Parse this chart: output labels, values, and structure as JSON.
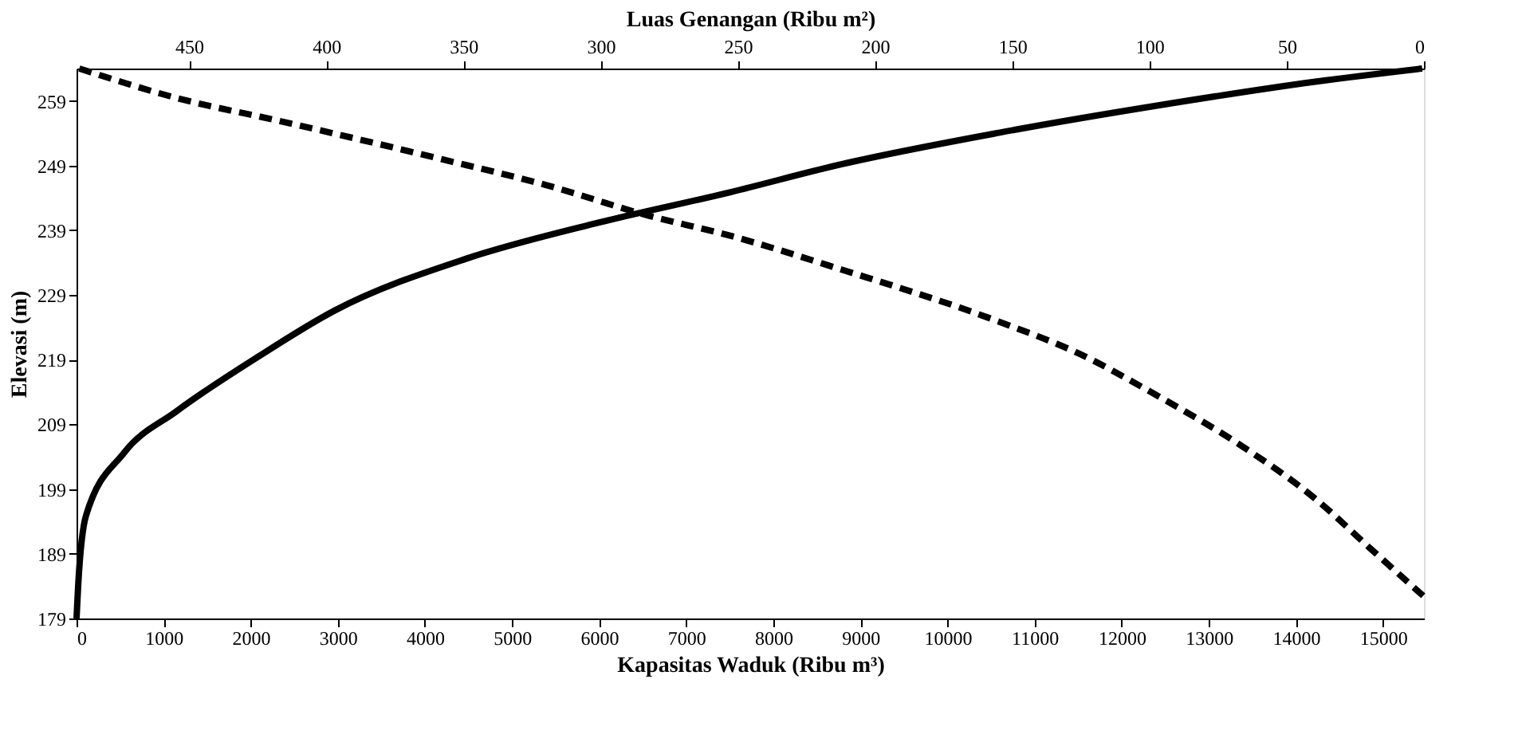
{
  "chart_data": {
    "type": "line",
    "xlabel": "Kapasitas Waduk (Ribu  m³)",
    "x2label": "Luas Genangan (Ribu m²)",
    "ylabel": "Elevasi (m)",
    "xlim": [
      0,
      15470
    ],
    "xticks": [
      0,
      1000,
      2000,
      3000,
      4000,
      5000,
      6000,
      7000,
      8000,
      9000,
      10000,
      11000,
      12000,
      13000,
      14000,
      15000
    ],
    "x2lim": [
      491,
      0
    ],
    "x2ticks": [
      450,
      400,
      350,
      300,
      250,
      200,
      150,
      100,
      50,
      0
    ],
    "ylim": [
      179,
      264
    ],
    "yticks": [
      179,
      189,
      199,
      209,
      219,
      229,
      239,
      249,
      259
    ],
    "grid": false,
    "marker": "none",
    "series": [
      {
        "color": "#000000",
        "line_style": "solid",
        "x": [
          0,
          18,
          109,
          545,
          1145,
          2055,
          2964,
          4473,
          6000,
          7510,
          8780,
          10600,
          12420,
          14240,
          15450
        ],
        "values": [
          179,
          183.9,
          194.9,
          204.6,
          211,
          219.2,
          226.6,
          234.6,
          240.2,
          244.9,
          249.2,
          254.1,
          258.3,
          262,
          264
        ]
      },
      {
        "color": "#000000",
        "line_style": "dashed",
        "axis": "x2",
        "x": [
          490,
          455,
          416,
          358,
          320,
          282,
          254,
          212,
          155,
          126,
          97,
          68,
          39,
          20,
          0
        ],
        "values": [
          264,
          259.5,
          255.8,
          250,
          246,
          241.2,
          238.3,
          232.9,
          224.9,
          220,
          213.4,
          206.1,
          197.3,
          190,
          182.4
        ]
      }
    ]
  }
}
